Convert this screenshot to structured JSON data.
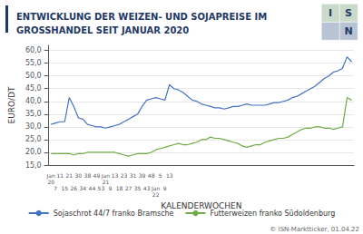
{
  "chart_data": {
    "type": "line",
    "title": "ENTWICKLUNG DER WEIZEN- UND SOJAPREISE IM\nGROSSHANDEL SEIT JANUAR 2020",
    "xlabel": "KALENDERWOCHEN",
    "ylabel": "EURO/DT",
    "categories": [
      "Jan\n20",
      "7",
      "11",
      "15",
      "21",
      "26",
      "30",
      "34",
      "38",
      "44",
      "49",
      "53",
      "Jan\n21",
      "9",
      "13",
      "18",
      "23",
      "27",
      "31",
      "35",
      "39",
      "43",
      "48",
      "Jan\n22",
      "5",
      "9",
      "13",
      null,
      null,
      null,
      null,
      null,
      null,
      null,
      null,
      null,
      null,
      null,
      null,
      null,
      null,
      null,
      null,
      null,
      null,
      null,
      null,
      null,
      null,
      null,
      null,
      null,
      null,
      null,
      null,
      null,
      null,
      null,
      null,
      null,
      null,
      null,
      null,
      null,
      null,
      null,
      null
    ],
    "series": [
      {
        "name": "Sojaschrot 44/7 franko Bramsche",
        "color": "#4472C4",
        "values": [
          31.0,
          31.5,
          32.0,
          32.0,
          41.5,
          38.0,
          33.5,
          33.0,
          31.0,
          30.5,
          30.0,
          30.0,
          29.5,
          30.0,
          30.5,
          31.0,
          32.0,
          33.0,
          34.0,
          35.0,
          38.0,
          40.5,
          41.0,
          41.5,
          41.0,
          40.5,
          46.5,
          45.0,
          44.5,
          43.5,
          42.0,
          40.5,
          40.0,
          39.0,
          38.5,
          38.0,
          37.5,
          37.5,
          37.0,
          37.5,
          38.0,
          38.0,
          38.5,
          39.0,
          38.5,
          38.5,
          38.5,
          38.5,
          39.0,
          39.5,
          39.5,
          40.0,
          40.5,
          41.5,
          42.0,
          43.0,
          44.0,
          45.0,
          46.0,
          47.5,
          49.0,
          50.0,
          51.5,
          52.0,
          53.0,
          57.5,
          55.5
        ]
      },
      {
        "name": "Futterweizen franko Südoldenburg",
        "color": "#70AD47",
        "values": [
          19.5,
          19.5,
          19.5,
          19.5,
          19.5,
          19.0,
          19.5,
          19.5,
          20.0,
          20.0,
          20.0,
          20.0,
          20.0,
          20.0,
          20.0,
          19.5,
          19.0,
          18.5,
          19.0,
          19.5,
          19.5,
          19.5,
          20.0,
          21.0,
          21.5,
          22.0,
          22.5,
          23.0,
          23.5,
          23.0,
          23.0,
          23.5,
          24.0,
          25.0,
          25.0,
          26.0,
          25.5,
          25.5,
          25.0,
          24.5,
          24.0,
          23.5,
          22.5,
          22.0,
          22.5,
          23.0,
          23.0,
          24.0,
          24.5,
          25.0,
          25.5,
          25.5,
          26.0,
          27.0,
          28.0,
          29.0,
          29.5,
          29.5,
          30.0,
          30.0,
          29.5,
          29.5,
          29.0,
          29.5,
          30.0,
          41.5,
          40.5
        ]
      }
    ],
    "ylim": [
      15.0,
      62.0
    ],
    "yticks": [
      {
        "value": 15.0,
        "label": "15,0"
      },
      {
        "value": 20.0,
        "label": "20,0"
      },
      {
        "value": 25.0,
        "label": "25,0"
      },
      {
        "value": 30.0,
        "label": "30,0"
      },
      {
        "value": 35.0,
        "label": "35,0"
      },
      {
        "value": 40.0,
        "label": "40,0"
      },
      {
        "value": 45.0,
        "label": "45,0"
      },
      {
        "value": 50.0,
        "label": "50,0"
      },
      {
        "value": 55.0,
        "label": "55,0"
      },
      {
        "value": 60.0,
        "label": "60,0"
      }
    ],
    "grid": true,
    "legend": "bottom",
    "annotations": [
      "© ISN-Marktticker, 01.04.22",
      "I",
      "S",
      "N"
    ]
  }
}
